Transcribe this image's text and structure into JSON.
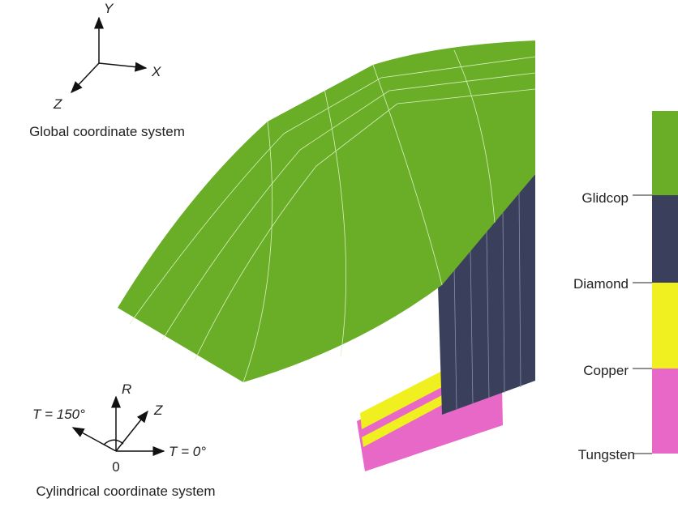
{
  "global_axes": {
    "y": "Y",
    "x": "X",
    "z": "Z",
    "caption": "Global coordinate system"
  },
  "cylindrical_axes": {
    "t_150": "T = 150°",
    "r": "R",
    "z": "Z",
    "t_0": "T = 0°",
    "origin": "0",
    "caption": "Cylindrical coordinate system"
  },
  "legend": {
    "items": [
      "Glidcop",
      "Diamond",
      "Copper",
      "Tungsten"
    ]
  }
}
